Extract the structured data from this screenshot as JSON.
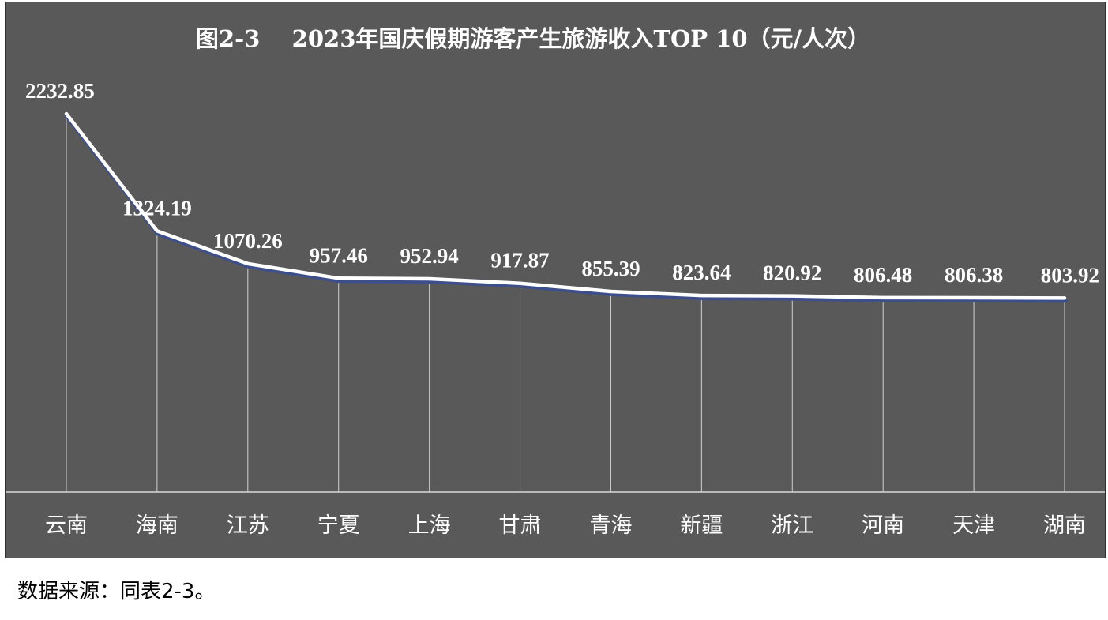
{
  "chart_data": {
    "type": "line",
    "title": "图2-3    2023年国庆假期游客产生旅游收入TOP 10（元/人次）",
    "categories": [
      "云南",
      "海南",
      "江苏",
      "宁夏",
      "上海",
      "甘肃",
      "青海",
      "新疆",
      "浙江",
      "河南",
      "天津",
      "湖南"
    ],
    "series": [
      {
        "values": [
          2232.85,
          1324.19,
          1070.26,
          957.46,
          952.94,
          917.87,
          855.39,
          823.64,
          820.92,
          806.48,
          806.38,
          803.92
        ]
      }
    ],
    "value_labels": [
      "2232.85",
      "1324.19",
      "1070.26",
      "957.46",
      "952.94",
      "917.87",
      "855.39",
      "823.64",
      "820.92",
      "806.48",
      "806.38",
      "803.92"
    ],
    "ylim": [
      -700,
      2900
    ],
    "grid": false,
    "drop_lines": true,
    "colors": {
      "background": "#595959",
      "line": "#ffffff",
      "text": "#ffffff"
    }
  },
  "source_note": "数据来源：同表2-3。"
}
